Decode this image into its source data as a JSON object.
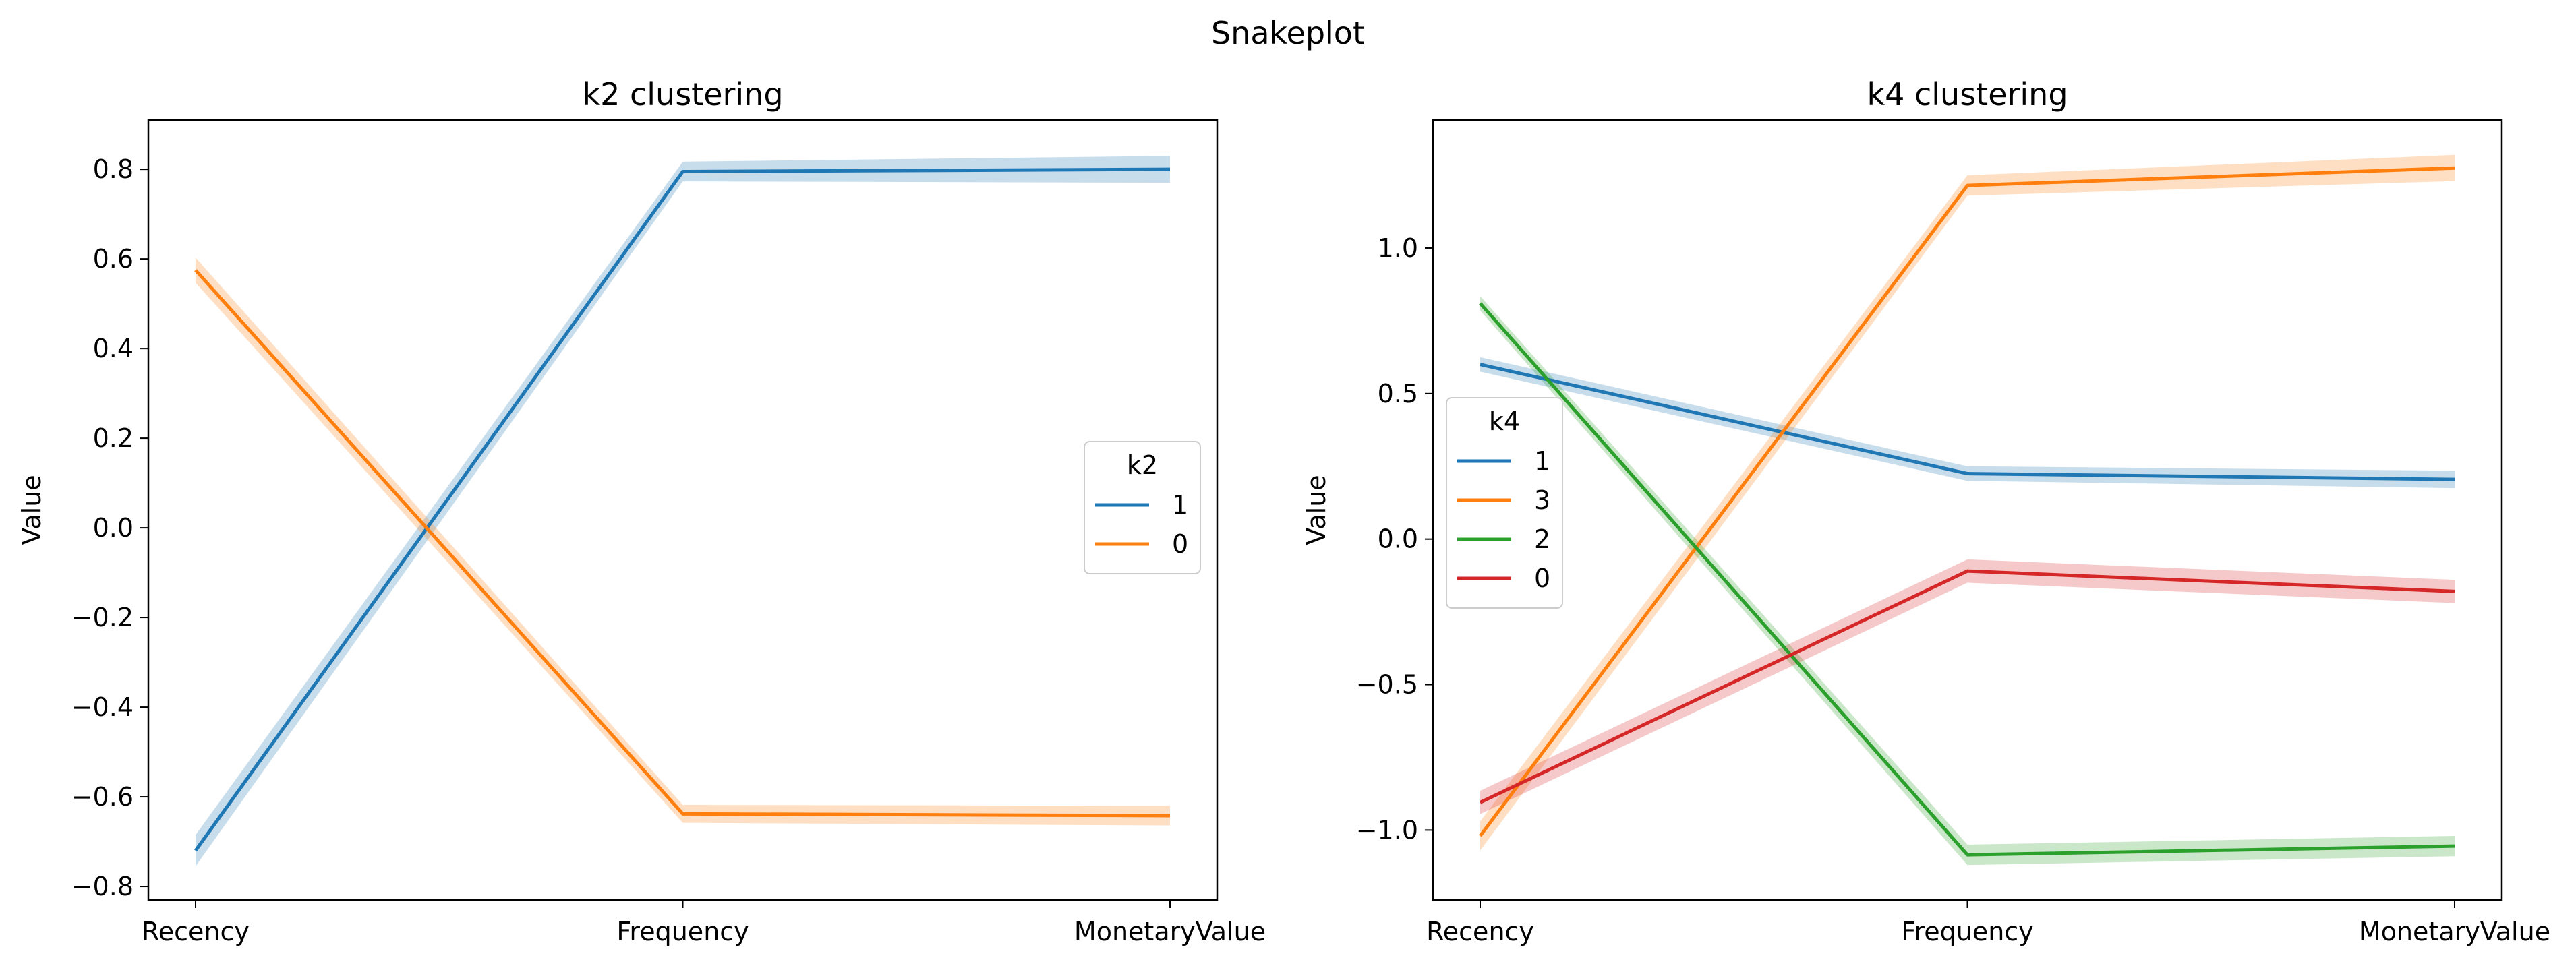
{
  "suptitle": "Snakeplot",
  "chart_data": [
    {
      "type": "line",
      "title": "k2 clustering",
      "xlabel": "",
      "ylabel": "Value",
      "categories": [
        "Recency",
        "Frequency",
        "MonetaryValue"
      ],
      "ylim": [
        -0.83,
        0.91
      ],
      "yticks": [
        -0.8,
        -0.6,
        -0.4,
        -0.2,
        0.0,
        0.2,
        0.4,
        0.6,
        0.8
      ],
      "ytick_labels": [
        "−0.8",
        "−0.6",
        "−0.4",
        "−0.2",
        "0.0",
        "0.2",
        "0.4",
        "0.6",
        "0.8"
      ],
      "legend_title": "k2",
      "legend_position": "center-right",
      "series": [
        {
          "name": "1",
          "color": "#1f77b4",
          "values": [
            -0.72,
            0.795,
            0.8
          ],
          "ci": [
            0.035,
            0.022,
            0.03
          ]
        },
        {
          "name": "0",
          "color": "#ff7f0e",
          "values": [
            0.575,
            -0.638,
            -0.642
          ],
          "ci": [
            0.028,
            0.02,
            0.022
          ]
        }
      ]
    },
    {
      "type": "line",
      "title": "k4 clustering",
      "xlabel": "",
      "ylabel": "Value",
      "categories": [
        "Recency",
        "Frequency",
        "MonetaryValue"
      ],
      "ylim": [
        -1.24,
        1.44
      ],
      "yticks": [
        -1.0,
        -0.5,
        0.0,
        0.5,
        1.0
      ],
      "ytick_labels": [
        "−1.0",
        "−0.5",
        "0.0",
        "0.5",
        "1.0"
      ],
      "legend_title": "k4",
      "legend_position": "center-left",
      "series": [
        {
          "name": "1",
          "color": "#1f77b4",
          "values": [
            0.6,
            0.225,
            0.205
          ],
          "ci": [
            0.025,
            0.025,
            0.03
          ]
        },
        {
          "name": "3",
          "color": "#ff7f0e",
          "values": [
            -1.02,
            1.215,
            1.275
          ],
          "ci": [
            0.05,
            0.035,
            0.045
          ]
        },
        {
          "name": "2",
          "color": "#2ca02c",
          "values": [
            0.81,
            -1.085,
            -1.055
          ],
          "ci": [
            0.025,
            0.035,
            0.035
          ]
        },
        {
          "name": "0",
          "color": "#d62728",
          "values": [
            -0.905,
            -0.11,
            -0.18
          ],
          "ci": [
            0.04,
            0.04,
            0.04
          ]
        }
      ]
    }
  ]
}
